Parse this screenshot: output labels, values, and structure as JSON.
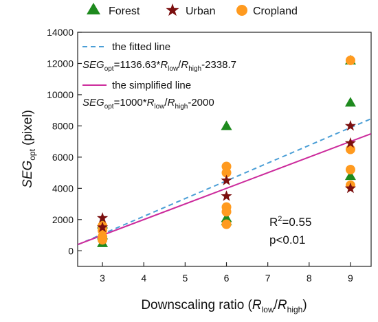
{
  "chart_data": {
    "type": "scatter",
    "xlabel": {
      "main": "Downscaling ratio (",
      "r1": "R",
      "s1": "low",
      "slash": "/",
      "r2": "R",
      "s2": "high",
      "close": ")"
    },
    "ylabel": {
      "main": "SEG",
      "sub": "opt",
      "unit": " (pixel)"
    },
    "xlim": [
      2.4,
      9.5
    ],
    "ylim": [
      -1000,
      14000
    ],
    "x_ticks": [
      3,
      4,
      5,
      6,
      7,
      8,
      9
    ],
    "y_ticks": [
      0,
      2000,
      4000,
      6000,
      8000,
      10000,
      12000,
      14000
    ],
    "legend_position": "top",
    "series": [
      {
        "name": "Forest",
        "marker": "triangle",
        "color": "#1e8a1e",
        "points": [
          [
            3,
            500
          ],
          [
            3,
            1000
          ],
          [
            3,
            1700
          ],
          [
            6,
            8000
          ],
          [
            6,
            2100
          ],
          [
            6,
            1900
          ],
          [
            9,
            12200
          ],
          [
            9,
            9500
          ],
          [
            9,
            4800
          ]
        ]
      },
      {
        "name": "Urban",
        "marker": "star",
        "color": "#7b0f0f",
        "points": [
          [
            3,
            2100
          ],
          [
            3,
            1500
          ],
          [
            6,
            4500
          ],
          [
            6,
            3500
          ],
          [
            9,
            8000
          ],
          [
            9,
            6900
          ],
          [
            9,
            4000
          ]
        ]
      },
      {
        "name": "Cropland",
        "marker": "circle",
        "color": "#ff9a1f",
        "points": [
          [
            3,
            1600
          ],
          [
            3,
            1300
          ],
          [
            3,
            900
          ],
          [
            3,
            700
          ],
          [
            6,
            5400
          ],
          [
            6,
            5000
          ],
          [
            6,
            2800
          ],
          [
            6,
            2500
          ],
          [
            6,
            1700
          ],
          [
            9,
            12200
          ],
          [
            9,
            6500
          ],
          [
            9,
            5200
          ],
          [
            9,
            4200
          ]
        ]
      }
    ],
    "lines": [
      {
        "name": "the fitted line",
        "style": "dashed",
        "color": "#4a9ed6",
        "slope": 1136.63,
        "intercept": -2338.7,
        "eq": {
          "lhs": "SEG",
          "lhs_sub": "opt",
          "mid": "=1136.63*",
          "r1": "R",
          "s1": "low",
          "slash": "/",
          "r2": "R",
          "s2": "high",
          "tail": "-2338.7"
        }
      },
      {
        "name": "the simplified line",
        "style": "solid",
        "color": "#cc2b9c",
        "slope": 1000,
        "intercept": -2000,
        "eq": {
          "lhs": "SEG",
          "lhs_sub": "opt",
          "mid": "=1000*",
          "r1": "R",
          "s1": "low",
          "slash": "/",
          "r2": "R",
          "s2": "high",
          "tail": "-2000"
        }
      }
    ],
    "annotations": {
      "r2_base": "R",
      "r2_sup": "2",
      "r2_val": "=0.55",
      "p": "p<0.01"
    }
  }
}
